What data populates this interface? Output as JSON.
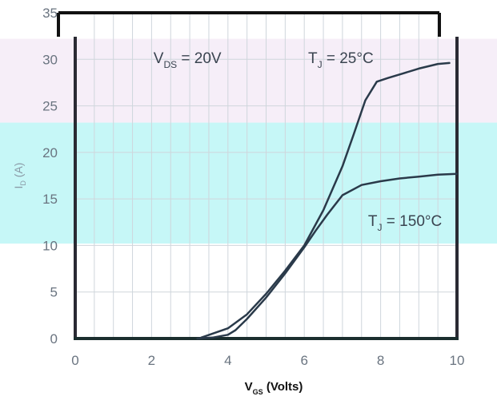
{
  "chart_data": {
    "type": "line",
    "title": "",
    "xlabel": {
      "main": "V",
      "sub": "GS",
      "unit": " (Volts)"
    },
    "ylabel": {
      "main": "I",
      "sub": "D",
      "unit": " (A)"
    },
    "xlim": [
      0,
      10
    ],
    "ylim": [
      0,
      35
    ],
    "x_ticks": [
      0,
      2,
      4,
      6,
      8,
      10
    ],
    "y_ticks": [
      0,
      5,
      10,
      15,
      20,
      25,
      30,
      35
    ],
    "grid": true,
    "bands": [
      {
        "from": 10.2,
        "to": 23.2,
        "color": "#c6f7f7"
      },
      {
        "from": 23.2,
        "to": 32.2,
        "color": "#f6eef8"
      }
    ],
    "annotations": [
      {
        "main": "V",
        "sub": "DS",
        "rest": " = 20V",
        "x": 2.05,
        "y": 29.6
      },
      {
        "main": "T",
        "sub": "J",
        "rest": " = 25°C",
        "x": 6.1,
        "y": 29.6
      },
      {
        "main": "T",
        "sub": "J",
        "rest": " = 150°C",
        "x": 9.9,
        "y": 12.1
      }
    ],
    "series": [
      {
        "name": "",
        "color": "#2a3a4a",
        "x": [
          3.3,
          4.0,
          4.5,
          5.0,
          5.5,
          6.0,
          6.5,
          7.0,
          7.3,
          7.6,
          7.9,
          8.2,
          8.6,
          9.0,
          9.5,
          9.8
        ],
        "y": [
          0.1,
          1.1,
          2.6,
          4.8,
          7.3,
          10.0,
          13.8,
          18.5,
          22.0,
          25.6,
          27.6,
          28.0,
          28.5,
          29.0,
          29.5,
          29.6
        ]
      },
      {
        "name": "",
        "color": "#2a3a4a",
        "x": [
          3.2,
          3.6,
          4.0,
          4.2,
          4.5,
          5.0,
          5.5,
          6.0,
          6.3,
          6.6,
          7.0,
          7.5,
          8.0,
          8.5,
          9.0,
          9.5,
          10.0
        ],
        "y": [
          0.0,
          0.1,
          0.4,
          0.9,
          2.1,
          4.4,
          7.0,
          9.8,
          11.6,
          13.3,
          15.4,
          16.5,
          16.9,
          17.2,
          17.4,
          17.6,
          17.7
        ]
      }
    ]
  }
}
